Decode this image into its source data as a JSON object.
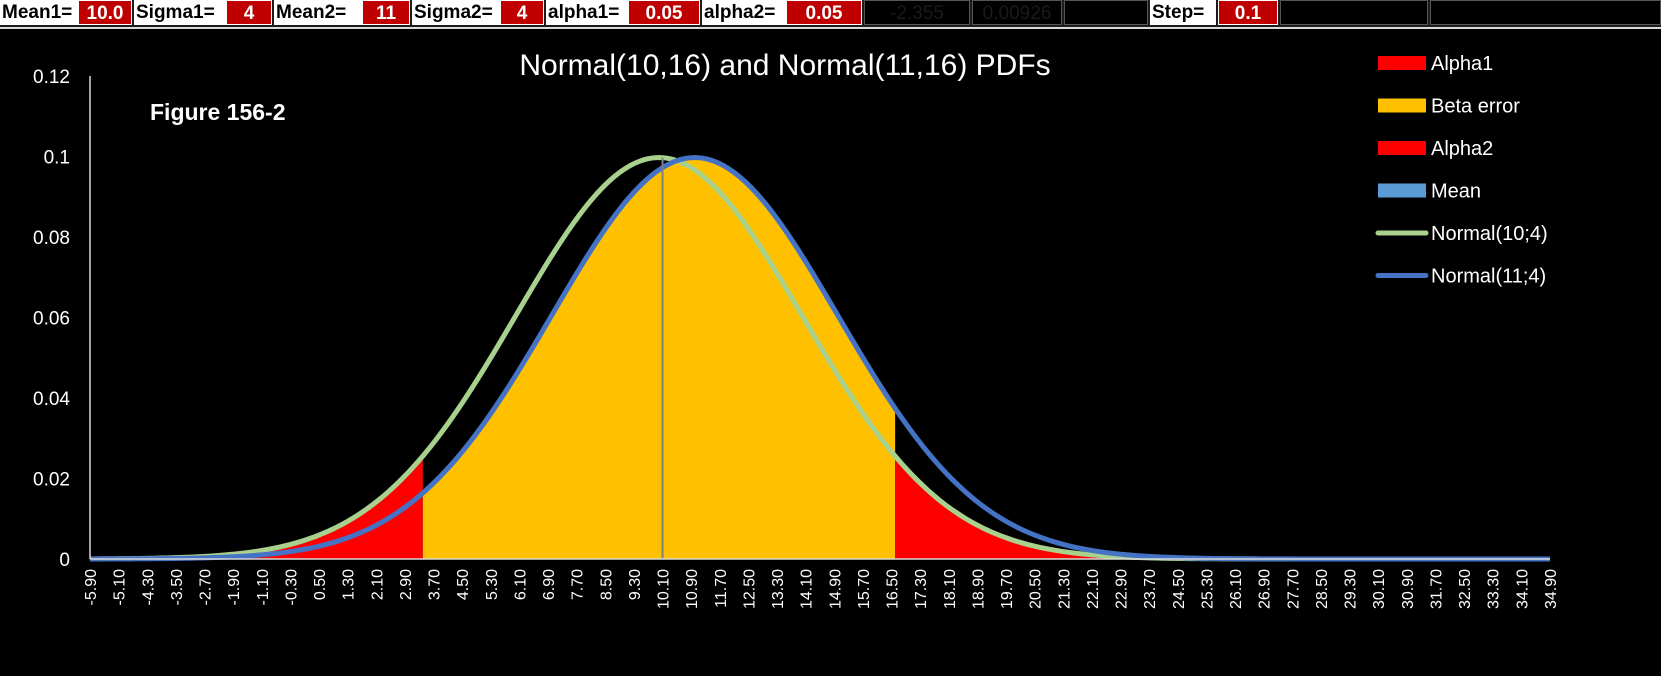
{
  "toolbar": {
    "mean1_label": "Mean1=",
    "mean1_value": "10.0",
    "sigma1_label": "Sigma1=",
    "sigma1_value": "4",
    "mean2_label": "Mean2=",
    "mean2_value": "11",
    "sigma2_label": "Sigma2=",
    "sigma2_value": "4",
    "alpha1_label": "alpha1=",
    "alpha1_value": "0.05",
    "alpha2_label": "alpha2=",
    "alpha2_value": "0.05",
    "calc1": "-2.355",
    "calc2": "0.00926",
    "step_label": "Step=",
    "step_value": "0.1"
  },
  "chart_data": {
    "type": "area",
    "title": "Normal(10,16) and Normal(11,16) PDFs",
    "annotation": "Figure 156-2",
    "xlim": [
      -5.9,
      34.9
    ],
    "ylim": [
      0,
      0.12
    ],
    "yticks": [
      "0",
      "0.02",
      "0.04",
      "0.06",
      "0.08",
      "0.1",
      "0.12"
    ],
    "xticks": [
      "-5.90",
      "-5.10",
      "-4.30",
      "-3.50",
      "-2.70",
      "-1.90",
      "-1.10",
      "-0.30",
      "0.50",
      "1.30",
      "2.10",
      "2.90",
      "3.70",
      "4.50",
      "5.30",
      "6.10",
      "6.90",
      "7.70",
      "8.50",
      "9.30",
      "10.10",
      "10.90",
      "11.70",
      "12.50",
      "13.30",
      "14.10",
      "14.90",
      "15.70",
      "16.50",
      "17.30",
      "18.10",
      "18.90",
      "19.70",
      "20.50",
      "21.30",
      "22.10",
      "22.90",
      "23.70",
      "24.50",
      "25.30",
      "26.10",
      "26.90",
      "27.70",
      "28.50",
      "29.30",
      "30.10",
      "30.90",
      "31.70",
      "32.50",
      "33.30",
      "34.10",
      "34.90"
    ],
    "series": [
      {
        "name": "Alpha1",
        "kind": "area",
        "color": "#ff0000",
        "x_range": [
          -5.9,
          3.4
        ],
        "pdf": {
          "mean": 10,
          "sd": 4
        }
      },
      {
        "name": "Beta error",
        "kind": "area",
        "color": "#ffc000",
        "x_range": [
          3.4,
          16.6
        ],
        "pdf": {
          "mean": 11,
          "sd": 4
        }
      },
      {
        "name": "Alpha2",
        "kind": "area",
        "color": "#ff0000",
        "x_range": [
          16.6,
          34.9
        ],
        "pdf": {
          "mean": 10,
          "sd": 4
        }
      },
      {
        "name": "Mean",
        "kind": "vline",
        "color": "#5b9bd5",
        "x": 10.1
      },
      {
        "name": "Normal(10;4)",
        "kind": "line",
        "color": "#a9d18e",
        "pdf": {
          "mean": 10,
          "sd": 4
        }
      },
      {
        "name": "Normal(11;4)",
        "kind": "line",
        "color": "#4472c4",
        "pdf": {
          "mean": 11,
          "sd": 4
        }
      }
    ],
    "legend_position": "right"
  }
}
